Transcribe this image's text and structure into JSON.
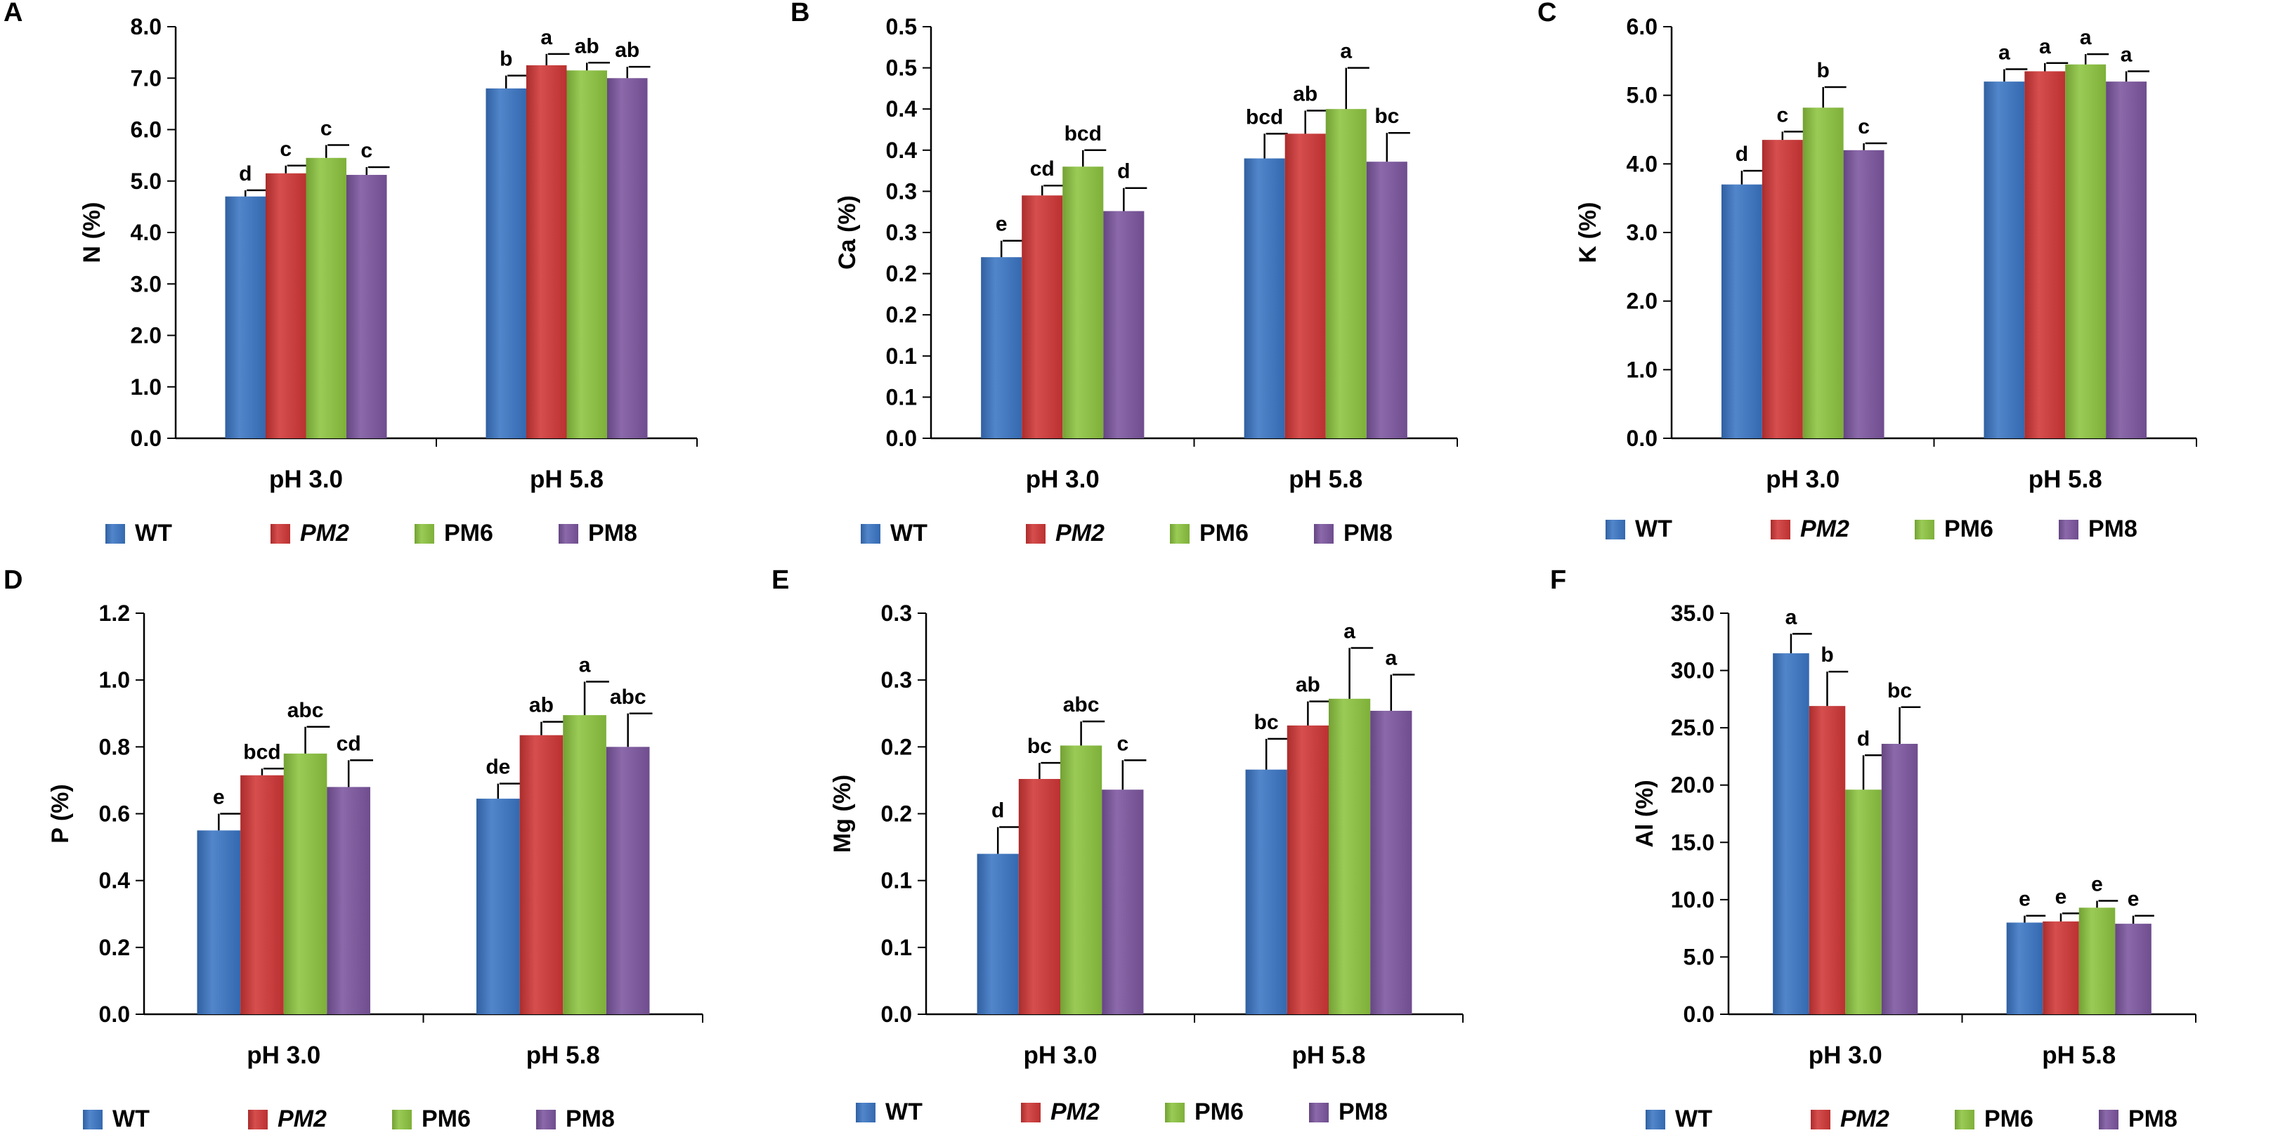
{
  "figure": {
    "legend_entries": [
      {
        "name": "WT",
        "italic": false
      },
      {
        "name": "PM2",
        "italic": true
      },
      {
        "name": "PM6",
        "italic": false
      },
      {
        "name": "PM8",
        "italic": false
      }
    ],
    "series_colors": [
      "#3A75C4",
      "#D03636",
      "#8CC43F",
      "#7B559E"
    ],
    "categories": [
      "pH 3.0",
      "pH 5.8"
    ]
  },
  "chart_data": [
    {
      "panel": "A",
      "type": "bar",
      "ylabel": "N (%)",
      "categories": [
        "pH 3.0",
        "pH 5.8"
      ],
      "ylim": [
        0,
        8.0
      ],
      "yticks": [
        "0.0",
        "1.0",
        "2.0",
        "3.0",
        "4.0",
        "5.0",
        "6.0",
        "7.0",
        "8.0"
      ],
      "series": [
        {
          "name": "WT",
          "values": [
            4.7,
            6.8
          ],
          "errors": [
            0.12,
            0.25
          ],
          "letters": [
            "d",
            "b"
          ]
        },
        {
          "name": "PM2",
          "values": [
            5.15,
            7.25
          ],
          "errors": [
            0.15,
            0.22
          ],
          "letters": [
            "c",
            "a"
          ]
        },
        {
          "name": "PM6",
          "values": [
            5.45,
            7.15
          ],
          "errors": [
            0.25,
            0.15
          ],
          "letters": [
            "c",
            "ab"
          ]
        },
        {
          "name": "PM8",
          "values": [
            5.12,
            7.0
          ],
          "errors": [
            0.15,
            0.22
          ],
          "letters": [
            "c",
            "ab"
          ]
        }
      ]
    },
    {
      "panel": "B",
      "type": "bar",
      "ylabel": "Ca (%)",
      "categories": [
        "pH 3.0",
        "pH 5.8"
      ],
      "ylim": [
        0,
        0.5
      ],
      "yticks": [
        "0.0",
        "0.1",
        "0.1",
        "0.2",
        "0.2",
        "0.3",
        "0.3",
        "0.4",
        "0.4",
        "0.5",
        "0.5"
      ],
      "series": [
        {
          "name": "WT",
          "values": [
            0.22,
            0.34
          ],
          "errors": [
            0.02,
            0.03
          ],
          "letters": [
            "e",
            "bcd"
          ]
        },
        {
          "name": "PM2",
          "values": [
            0.295,
            0.37
          ],
          "errors": [
            0.012,
            0.028
          ],
          "letters": [
            "cd",
            "ab"
          ]
        },
        {
          "name": "PM6",
          "values": [
            0.33,
            0.4
          ],
          "errors": [
            0.02,
            0.05
          ],
          "letters": [
            "bcd",
            "a"
          ]
        },
        {
          "name": "PM8",
          "values": [
            0.276,
            0.336
          ],
          "errors": [
            0.028,
            0.035
          ],
          "letters": [
            "d",
            "bc"
          ]
        }
      ]
    },
    {
      "panel": "C",
      "type": "bar",
      "ylabel": "K (%)",
      "categories": [
        "pH 3.0",
        "pH 5.8"
      ],
      "ylim": [
        0,
        6.0
      ],
      "yticks": [
        "0.0",
        "1.0",
        "2.0",
        "3.0",
        "4.0",
        "5.0",
        "6.0"
      ],
      "series": [
        {
          "name": "WT",
          "values": [
            3.7,
            5.2
          ],
          "errors": [
            0.2,
            0.18
          ],
          "letters": [
            "d",
            "a"
          ]
        },
        {
          "name": "PM2",
          "values": [
            4.35,
            5.35
          ],
          "errors": [
            0.12,
            0.12
          ],
          "letters": [
            "c",
            "a"
          ]
        },
        {
          "name": "PM6",
          "values": [
            4.82,
            5.45
          ],
          "errors": [
            0.3,
            0.15
          ],
          "letters": [
            "b",
            "a"
          ]
        },
        {
          "name": "PM8",
          "values": [
            4.2,
            5.2
          ],
          "errors": [
            0.1,
            0.15
          ],
          "letters": [
            "c",
            "a"
          ]
        }
      ]
    },
    {
      "panel": "D",
      "type": "bar",
      "ylabel": "P (%)",
      "categories": [
        "pH 3.0",
        "pH 5.8"
      ],
      "ylim": [
        0,
        1.2
      ],
      "yticks": [
        "0.0",
        "0.2",
        "0.4",
        "0.6",
        "0.8",
        "1.0",
        "1.2"
      ],
      "series": [
        {
          "name": "WT",
          "values": [
            0.55,
            0.645
          ],
          "errors": [
            0.05,
            0.045
          ],
          "letters": [
            "e",
            "de"
          ]
        },
        {
          "name": "PM2",
          "values": [
            0.715,
            0.835
          ],
          "errors": [
            0.02,
            0.04
          ],
          "letters": [
            "bcd",
            "ab"
          ]
        },
        {
          "name": "PM6",
          "values": [
            0.78,
            0.895
          ],
          "errors": [
            0.08,
            0.1
          ],
          "letters": [
            "abc",
            "a"
          ]
        },
        {
          "name": "PM8",
          "values": [
            0.68,
            0.8
          ],
          "errors": [
            0.08,
            0.1
          ],
          "letters": [
            "cd",
            "abc"
          ]
        }
      ]
    },
    {
      "panel": "E",
      "type": "bar",
      "ylabel": "Mg (%)",
      "categories": [
        "pH 3.0",
        "pH 5.8"
      ],
      "ylim": [
        0,
        0.3
      ],
      "yticks": [
        "0.0",
        "0.1",
        "0.1",
        "0.2",
        "0.2",
        "0.3",
        "0.3"
      ],
      "series": [
        {
          "name": "WT",
          "values": [
            0.12,
            0.183
          ],
          "errors": [
            0.02,
            0.023
          ],
          "letters": [
            "d",
            "bc"
          ]
        },
        {
          "name": "PM2",
          "values": [
            0.176,
            0.216
          ],
          "errors": [
            0.012,
            0.018
          ],
          "letters": [
            "bc",
            "ab"
          ]
        },
        {
          "name": "PM6",
          "values": [
            0.201,
            0.236
          ],
          "errors": [
            0.018,
            0.038
          ],
          "letters": [
            "abc",
            "a"
          ]
        },
        {
          "name": "PM8",
          "values": [
            0.168,
            0.227
          ],
          "errors": [
            0.022,
            0.027
          ],
          "letters": [
            "c",
            "a"
          ]
        }
      ]
    },
    {
      "panel": "F",
      "type": "bar",
      "ylabel": "Al (%)",
      "categories": [
        "pH 3.0",
        "pH 5.8"
      ],
      "ylim": [
        0,
        35.0
      ],
      "yticks": [
        "0.0",
        "5.0",
        "10.0",
        "15.0",
        "20.0",
        "25.0",
        "30.0",
        "35.0"
      ],
      "series": [
        {
          "name": "WT",
          "values": [
            31.5,
            8.0
          ],
          "errors": [
            1.7,
            0.6
          ],
          "letters": [
            "a",
            "e"
          ]
        },
        {
          "name": "PM2",
          "values": [
            26.9,
            8.1
          ],
          "errors": [
            3.0,
            0.7
          ],
          "letters": [
            "b",
            "e"
          ]
        },
        {
          "name": "PM6",
          "values": [
            19.6,
            9.3
          ],
          "errors": [
            3.0,
            0.6
          ],
          "letters": [
            "d",
            "e"
          ]
        },
        {
          "name": "PM8",
          "values": [
            23.6,
            7.9
          ],
          "errors": [
            3.2,
            0.7
          ],
          "letters": [
            "bc",
            "e"
          ]
        }
      ]
    }
  ]
}
